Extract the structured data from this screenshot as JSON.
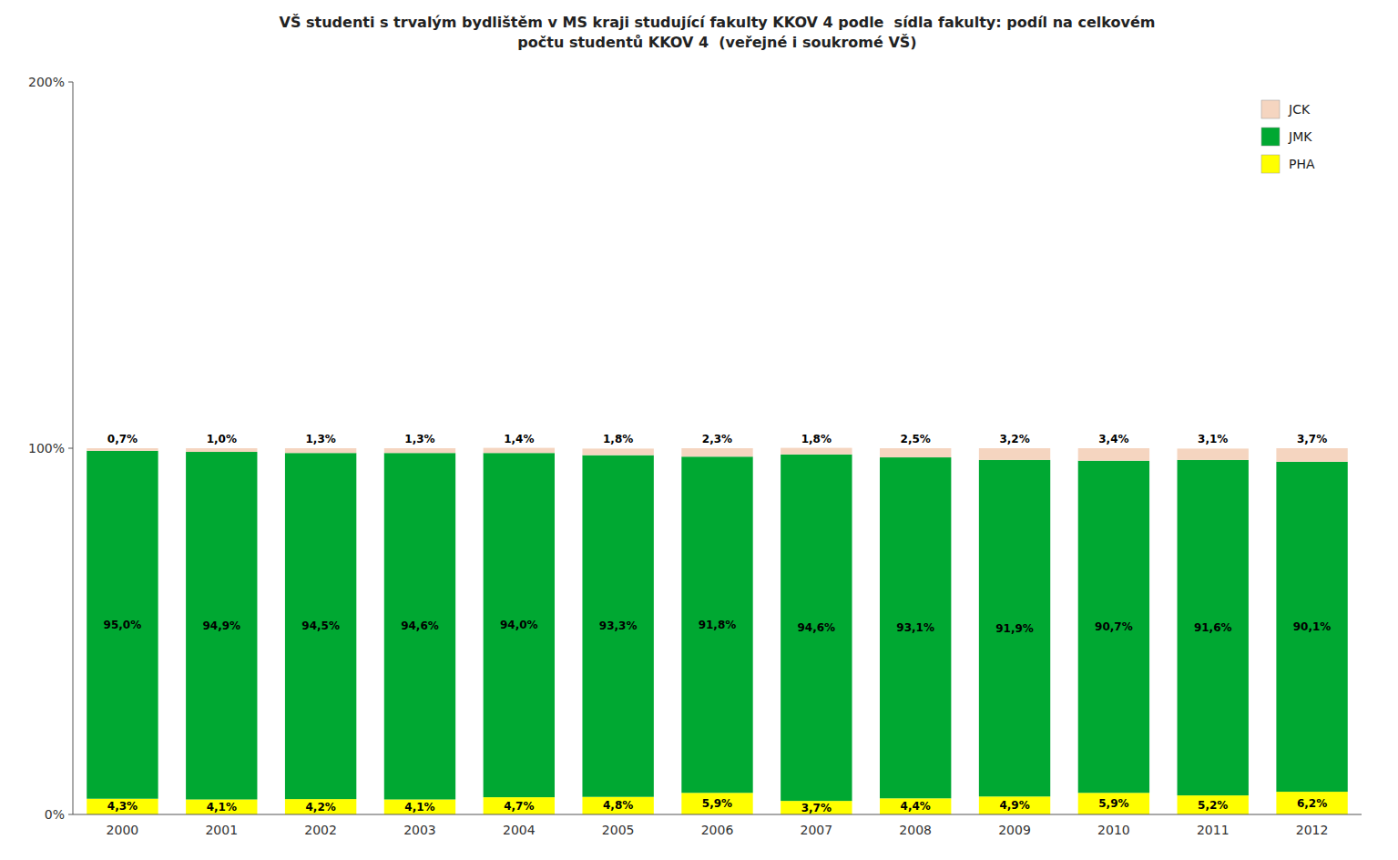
{
  "chart_data": {
    "type": "bar",
    "stacked": true,
    "title": "VŠ studenti s trvalým bydlištěm v MS kraji studující fakulty KKOV 4 podle  sídla fakulty: podíl na celkovém\npočtu studentů KKOV 4  (veřejné i soukromé VŠ)",
    "categories": [
      "2000",
      "2001",
      "2002",
      "2003",
      "2004",
      "2005",
      "2006",
      "2007",
      "2008",
      "2009",
      "2010",
      "2011",
      "2012"
    ],
    "series": [
      {
        "name": "PHA",
        "color": "#FFFF00",
        "values": [
          4.3,
          4.1,
          4.2,
          4.1,
          4.7,
          4.8,
          5.9,
          3.7,
          4.4,
          4.9,
          5.9,
          5.2,
          6.2
        ],
        "value_labels": [
          "4,3%",
          "4,1%",
          "4,2%",
          "4,1%",
          "4,7%",
          "4,8%",
          "5,9%",
          "3,7%",
          "4,4%",
          "4,9%",
          "5,9%",
          "5,2%",
          "6,2%"
        ]
      },
      {
        "name": "JMK",
        "color": "#00A832",
        "values": [
          95.0,
          94.9,
          94.5,
          94.6,
          94.0,
          93.3,
          91.8,
          94.6,
          93.1,
          91.9,
          90.7,
          91.6,
          90.1
        ],
        "value_labels": [
          "95,0%",
          "94,9%",
          "94,5%",
          "94,6%",
          "94,0%",
          "93,3%",
          "91,8%",
          "94,6%",
          "93,1%",
          "91,9%",
          "90,7%",
          "91,6%",
          "90,1%"
        ]
      },
      {
        "name": "JCK",
        "color": "#F5D5C0",
        "values": [
          0.7,
          1.0,
          1.3,
          1.3,
          1.4,
          1.8,
          2.3,
          1.8,
          2.5,
          3.2,
          3.4,
          3.1,
          3.7
        ],
        "value_labels": [
          "0,7%",
          "1,0%",
          "1,3%",
          "1,3%",
          "1,4%",
          "1,8%",
          "2,3%",
          "1,8%",
          "2,5%",
          "3,2%",
          "3,4%",
          "3,1%",
          "3,7%"
        ]
      }
    ],
    "ylim": [
      0,
      200
    ],
    "yticks": [
      {
        "value": 0,
        "label": "0%"
      },
      {
        "value": 100,
        "label": "100%"
      },
      {
        "value": 200,
        "label": "200%"
      }
    ],
    "grid": false,
    "legend": "upper right",
    "data_labels": true
  }
}
